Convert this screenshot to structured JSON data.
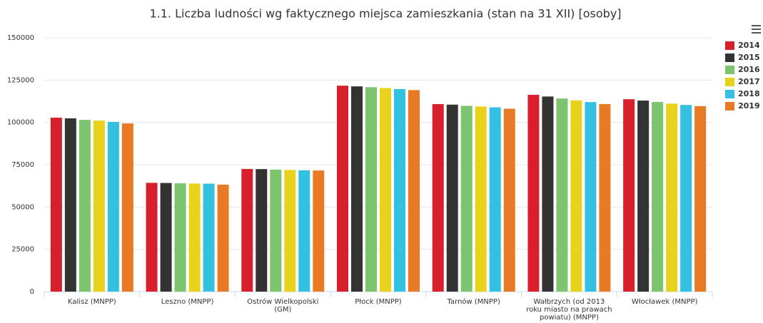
{
  "chart_data": {
    "type": "bar",
    "title": "1.1. Liczba ludności wg faktycznego miejsca zamieszkania (stan na 31 XII) [osoby]",
    "categories": [
      "Kalisz (MNPP)",
      "Leszno (MNPP)",
      "Ostrów Wielkopolski (GM)",
      "Płock (MNPP)",
      "Tarnów (MNPP)",
      "Wałbrzych (od 2013 roku miasto na prawach powiatu) (MNPP)",
      "Włocławek (MNPP)"
    ],
    "series": [
      {
        "name": "2014",
        "color": "#d7202c",
        "values": [
          102800,
          64300,
          72500,
          121700,
          110800,
          116300,
          113700
        ]
      },
      {
        "name": "2015",
        "color": "#333333",
        "values": [
          102400,
          64200,
          72400,
          121300,
          110500,
          115300,
          112900
        ]
      },
      {
        "name": "2016",
        "color": "#7dc46e",
        "values": [
          101500,
          64000,
          72100,
          120800,
          109800,
          114100,
          112100
        ]
      },
      {
        "name": "2017",
        "color": "#e8d21c",
        "values": [
          101100,
          63900,
          71900,
          120300,
          109400,
          113000,
          111100
        ]
      },
      {
        "name": "2018",
        "color": "#34c0e0",
        "values": [
          100300,
          63800,
          71700,
          119700,
          108900,
          112000,
          110300
        ]
      },
      {
        "name": "2019",
        "color": "#e87a25",
        "values": [
          99400,
          63200,
          71600,
          119100,
          108100,
          110800,
          109600
        ]
      }
    ],
    "ylim": [
      0,
      150000
    ],
    "yticks": [
      0,
      25000,
      50000,
      75000,
      100000,
      125000,
      150000
    ],
    "grid": true,
    "legend": "right"
  }
}
